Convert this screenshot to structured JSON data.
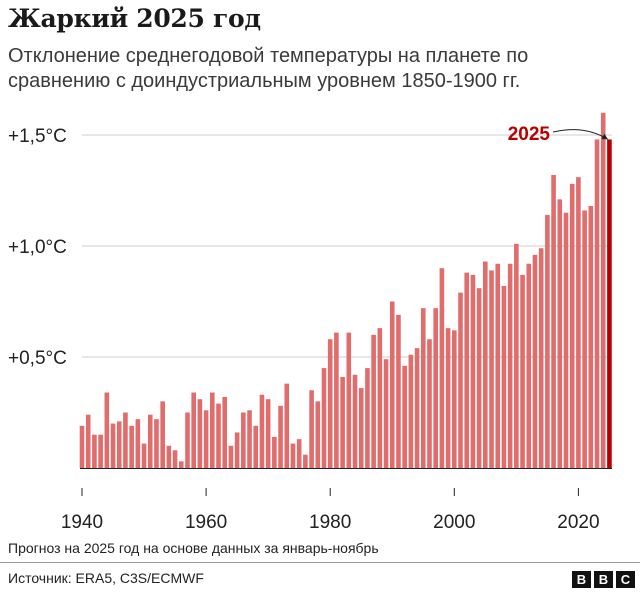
{
  "header": {
    "title": "Жаркий 2025 год",
    "subtitle": "Отклонение среднегодовой температуры на планете по сравнению с доиндустриальным уровнем 1850-1900 гг."
  },
  "footer": {
    "note": "Прогноз на 2025 год на основе данных за январь-ноябрь",
    "source": "Источник: ERA5, C3S/ECMWF",
    "logo_letters": [
      "B",
      "B",
      "C"
    ]
  },
  "colors": {
    "bar": "#e06c6c",
    "highlight": "#b80000",
    "grid": "#cfcfcf",
    "axis": "#222222"
  },
  "chart_data": {
    "type": "bar",
    "title": "Жаркий 2025 год",
    "subtitle": "Отклонение среднегодовой температуры на планете по сравнению с доиндустриальным уровнем 1850-1900 гг.",
    "ylim": [
      0,
      1.5
    ],
    "y_ticks": [
      {
        "value": 0.5,
        "label": "+0,5°C"
      },
      {
        "value": 1.0,
        "label": "+1,0°C"
      },
      {
        "value": 1.5,
        "label": "+1,5°C"
      }
    ],
    "x_ticks": [
      {
        "value": 1940,
        "label": "1940"
      },
      {
        "value": 1960,
        "label": "1960"
      },
      {
        "value": 1980,
        "label": "1980"
      },
      {
        "value": 2000,
        "label": "2000"
      },
      {
        "value": 2020,
        "label": "2020"
      }
    ],
    "grid": true,
    "highlight": {
      "x": 2025,
      "label": "2025"
    },
    "x": [
      1940,
      1941,
      1942,
      1943,
      1944,
      1945,
      1946,
      1947,
      1948,
      1949,
      1950,
      1951,
      1952,
      1953,
      1954,
      1955,
      1956,
      1957,
      1958,
      1959,
      1960,
      1961,
      1962,
      1963,
      1964,
      1965,
      1966,
      1967,
      1968,
      1969,
      1970,
      1971,
      1972,
      1973,
      1974,
      1975,
      1976,
      1977,
      1978,
      1979,
      1980,
      1981,
      1982,
      1983,
      1984,
      1985,
      1986,
      1987,
      1988,
      1989,
      1990,
      1991,
      1992,
      1993,
      1994,
      1995,
      1996,
      1997,
      1998,
      1999,
      2000,
      2001,
      2002,
      2003,
      2004,
      2005,
      2006,
      2007,
      2008,
      2009,
      2010,
      2011,
      2012,
      2013,
      2014,
      2015,
      2016,
      2017,
      2018,
      2019,
      2020,
      2021,
      2022,
      2023,
      2024,
      2025
    ],
    "values": [
      0.19,
      0.24,
      0.15,
      0.15,
      0.34,
      0.2,
      0.21,
      0.25,
      0.19,
      0.22,
      0.11,
      0.24,
      0.22,
      0.3,
      0.1,
      0.08,
      0.03,
      0.25,
      0.34,
      0.31,
      0.26,
      0.34,
      0.29,
      0.32,
      0.1,
      0.16,
      0.25,
      0.26,
      0.19,
      0.33,
      0.31,
      0.14,
      0.28,
      0.38,
      0.11,
      0.13,
      0.06,
      0.35,
      0.3,
      0.45,
      0.58,
      0.61,
      0.41,
      0.61,
      0.42,
      0.36,
      0.45,
      0.6,
      0.63,
      0.49,
      0.75,
      0.69,
      0.46,
      0.51,
      0.54,
      0.72,
      0.58,
      0.72,
      0.9,
      0.63,
      0.62,
      0.79,
      0.88,
      0.87,
      0.81,
      0.93,
      0.89,
      0.92,
      0.82,
      0.92,
      1.01,
      0.87,
      0.92,
      0.96,
      0.99,
      1.14,
      1.32,
      1.21,
      1.15,
      1.28,
      1.31,
      1.16,
      1.18,
      1.48,
      1.6,
      1.48
    ]
  }
}
